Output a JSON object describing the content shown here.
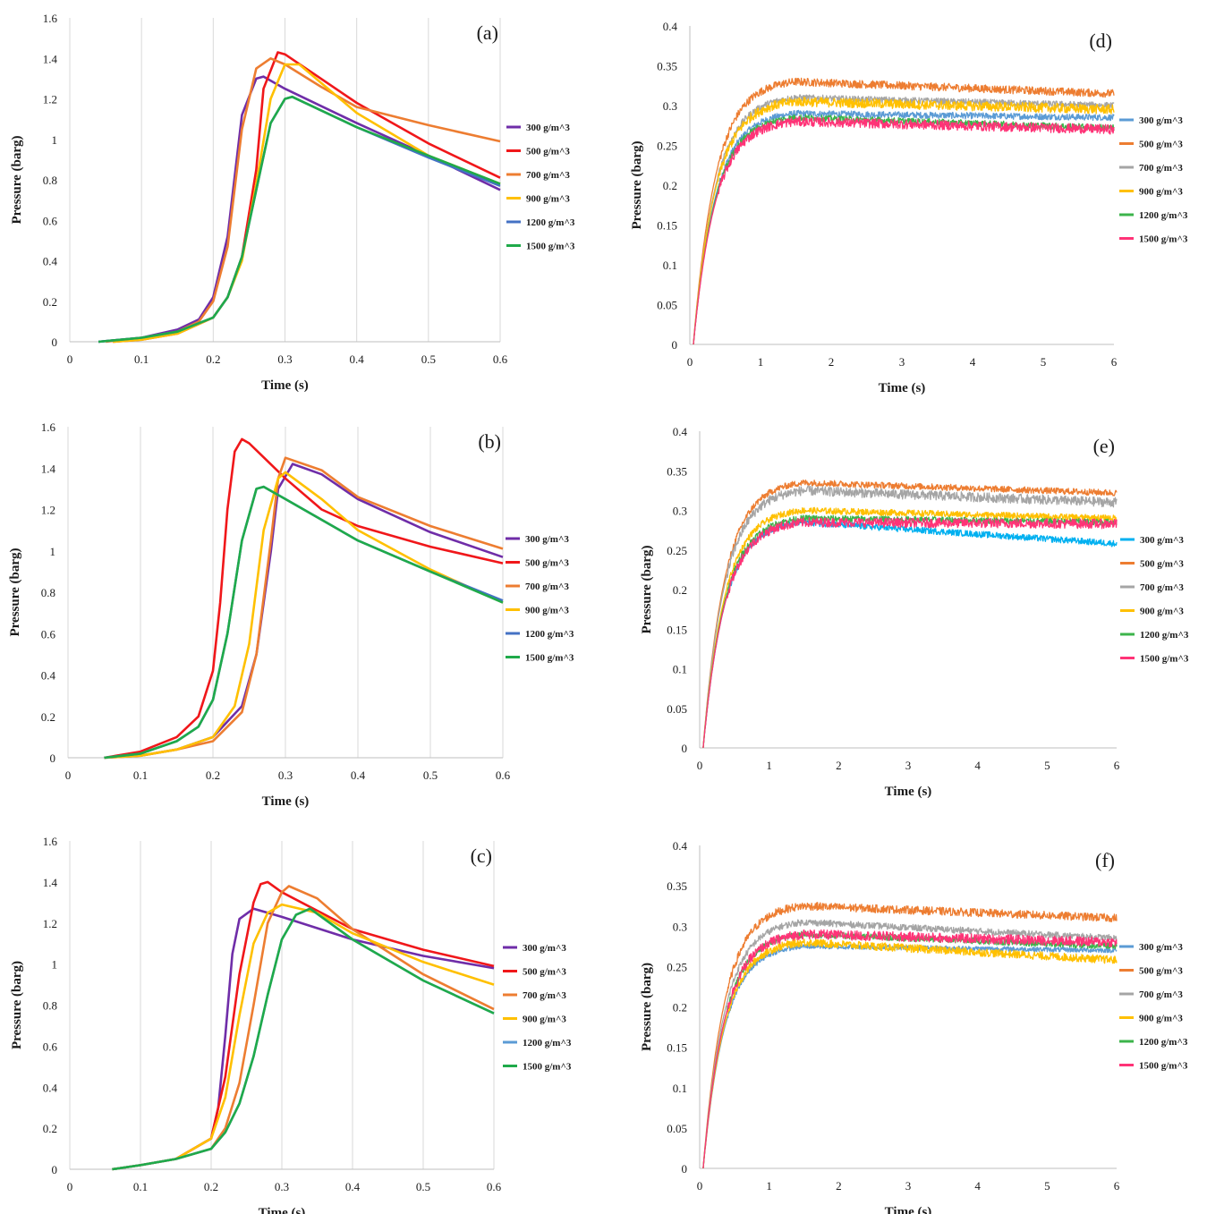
{
  "colors": {
    "300": "#6f2da8",
    "500": "#f0171a",
    "700": "#ed7d31",
    "900": "#ffc000",
    "1200": "#4472c4",
    "1500": "#1faa4a",
    "300_right": "#5b9bd5",
    "700_right": "#a5a5a5",
    "1200_right": "#3cb44b",
    "1500_right": "#ff3377",
    "300_e": "#00b0f0"
  },
  "chart_data": [
    {
      "id": "a",
      "type": "line",
      "label": "(a)",
      "xlabel": "Time (s)",
      "ylabel": "Pressure (barg)",
      "xlim": [
        0,
        0.6
      ],
      "ylim": [
        0,
        1.6
      ],
      "xticks": [
        "0",
        "0.1",
        "0.2",
        "0.3",
        "0.4",
        "0.5",
        "0.6"
      ],
      "yticks": [
        "0",
        "0.2",
        "0.4",
        "0.6",
        "0.8",
        "1",
        "1.2",
        "1.4",
        "1.6"
      ],
      "grid": true,
      "legend": "right",
      "series": [
        {
          "name": "300 g/m^3",
          "color": "#6f2da8",
          "x": [
            0.04,
            0.1,
            0.15,
            0.18,
            0.2,
            0.22,
            0.24,
            0.26,
            0.27,
            0.3,
            0.4,
            0.5,
            0.6
          ],
          "y": [
            0,
            0.02,
            0.06,
            0.11,
            0.22,
            0.52,
            1.12,
            1.3,
            1.31,
            1.25,
            1.08,
            0.92,
            0.75
          ]
        },
        {
          "name": "500 g/m^3",
          "color": "#f0171a",
          "x": [
            0.06,
            0.1,
            0.15,
            0.2,
            0.22,
            0.24,
            0.26,
            0.27,
            0.29,
            0.3,
            0.4,
            0.5,
            0.6
          ],
          "y": [
            0,
            0.01,
            0.04,
            0.12,
            0.22,
            0.42,
            0.85,
            1.25,
            1.43,
            1.42,
            1.18,
            0.98,
            0.81
          ]
        },
        {
          "name": "700 g/m^3",
          "color": "#ed7d31",
          "x": [
            0.05,
            0.1,
            0.15,
            0.18,
            0.2,
            0.22,
            0.24,
            0.26,
            0.28,
            0.3,
            0.35,
            0.4,
            0.5,
            0.6
          ],
          "y": [
            0,
            0.02,
            0.05,
            0.1,
            0.2,
            0.47,
            1.05,
            1.35,
            1.4,
            1.37,
            1.26,
            1.16,
            1.07,
            0.99
          ]
        },
        {
          "name": "900 g/m^3",
          "color": "#ffc000",
          "x": [
            0.06,
            0.1,
            0.15,
            0.2,
            0.22,
            0.24,
            0.26,
            0.28,
            0.3,
            0.32,
            0.4,
            0.5,
            0.6
          ],
          "y": [
            0,
            0.01,
            0.04,
            0.12,
            0.22,
            0.4,
            0.78,
            1.2,
            1.37,
            1.37,
            1.13,
            0.92,
            0.78
          ]
        },
        {
          "name": "1200 g/m^3",
          "color": "#4472c4",
          "x": [
            0.04,
            0.1,
            0.15,
            0.2,
            0.22,
            0.24,
            0.26,
            0.28,
            0.3,
            0.31,
            0.4,
            0.5,
            0.6
          ],
          "y": [
            0,
            0.02,
            0.05,
            0.12,
            0.22,
            0.42,
            0.75,
            1.08,
            1.2,
            1.21,
            1.06,
            0.91,
            0.77
          ]
        },
        {
          "name": "1500 g/m^3",
          "color": "#1faa4a",
          "x": [
            0.04,
            0.1,
            0.15,
            0.2,
            0.22,
            0.24,
            0.26,
            0.28,
            0.3,
            0.31,
            0.4,
            0.5,
            0.6
          ],
          "y": [
            0,
            0.02,
            0.05,
            0.12,
            0.22,
            0.42,
            0.75,
            1.08,
            1.2,
            1.21,
            1.06,
            0.92,
            0.78
          ]
        }
      ]
    },
    {
      "id": "b",
      "type": "line",
      "label": "(b)",
      "xlabel": "Time (s)",
      "ylabel": "Pressure (barg)",
      "xlim": [
        0,
        0.6
      ],
      "ylim": [
        0,
        1.6
      ],
      "xticks": [
        "0",
        "0.1",
        "0.2",
        "0.3",
        "0.4",
        "0.5",
        "0.6"
      ],
      "yticks": [
        "0",
        "0.2",
        "0.4",
        "0.6",
        "0.8",
        "1",
        "1.2",
        "1.4",
        "1.6"
      ],
      "grid": true,
      "legend": "right",
      "series": [
        {
          "name": "300 g/m^3",
          "color": "#6f2da8",
          "x": [
            0.05,
            0.1,
            0.15,
            0.2,
            0.24,
            0.26,
            0.28,
            0.29,
            0.31,
            0.35,
            0.4,
            0.5,
            0.6
          ],
          "y": [
            0,
            0.01,
            0.04,
            0.1,
            0.25,
            0.5,
            1.0,
            1.3,
            1.42,
            1.37,
            1.25,
            1.09,
            0.97
          ]
        },
        {
          "name": "500 g/m^3",
          "color": "#f0171a",
          "x": [
            0.05,
            0.1,
            0.15,
            0.18,
            0.2,
            0.21,
            0.22,
            0.23,
            0.24,
            0.25,
            0.3,
            0.35,
            0.4,
            0.5,
            0.6
          ],
          "y": [
            0,
            0.03,
            0.1,
            0.2,
            0.42,
            0.75,
            1.2,
            1.48,
            1.54,
            1.52,
            1.35,
            1.2,
            1.12,
            1.02,
            0.94
          ]
        },
        {
          "name": "700 g/m^3",
          "color": "#ed7d31",
          "x": [
            0.05,
            0.1,
            0.15,
            0.2,
            0.24,
            0.26,
            0.28,
            0.29,
            0.3,
            0.35,
            0.4,
            0.5,
            0.6
          ],
          "y": [
            0,
            0.01,
            0.04,
            0.08,
            0.22,
            0.5,
            1.05,
            1.35,
            1.45,
            1.39,
            1.26,
            1.12,
            1.01
          ]
        },
        {
          "name": "900 g/m^3",
          "color": "#ffc000",
          "x": [
            0.05,
            0.1,
            0.15,
            0.2,
            0.23,
            0.25,
            0.27,
            0.29,
            0.3,
            0.35,
            0.4,
            0.5,
            0.6
          ],
          "y": [
            0,
            0.01,
            0.04,
            0.1,
            0.25,
            0.55,
            1.1,
            1.35,
            1.38,
            1.25,
            1.1,
            0.91,
            0.75
          ]
        },
        {
          "name": "1200 g/m^3",
          "color": "#4472c4",
          "x": [
            0.05,
            0.1,
            0.15,
            0.18,
            0.2,
            0.22,
            0.24,
            0.26,
            0.27,
            0.3,
            0.4,
            0.5,
            0.6
          ],
          "y": [
            0,
            0.02,
            0.08,
            0.15,
            0.28,
            0.6,
            1.05,
            1.3,
            1.31,
            1.25,
            1.05,
            0.9,
            0.76
          ]
        },
        {
          "name": "1500 g/m^3",
          "color": "#1faa4a",
          "x": [
            0.05,
            0.1,
            0.15,
            0.18,
            0.2,
            0.22,
            0.24,
            0.26,
            0.27,
            0.3,
            0.4,
            0.5,
            0.6
          ],
          "y": [
            0,
            0.02,
            0.08,
            0.15,
            0.28,
            0.6,
            1.05,
            1.3,
            1.31,
            1.25,
            1.05,
            0.9,
            0.75
          ]
        }
      ]
    },
    {
      "id": "c",
      "type": "line",
      "label": "(c)",
      "xlabel": "Time (s)",
      "ylabel": "Pressure (barg)",
      "xlim": [
        0,
        0.6
      ],
      "ylim": [
        0,
        1.6
      ],
      "xticks": [
        "0",
        "0.1",
        "0.2",
        "0.3",
        "0.4",
        "0.5",
        "0.6"
      ],
      "yticks": [
        "0",
        "0.2",
        "0.4",
        "0.6",
        "0.8",
        "1",
        "1.2",
        "1.4",
        "1.6"
      ],
      "grid": true,
      "legend": "right",
      "series": [
        {
          "name": "300 g/m^3",
          "color": "#6f2da8",
          "x": [
            0.06,
            0.1,
            0.15,
            0.2,
            0.21,
            0.22,
            0.23,
            0.24,
            0.26,
            0.3,
            0.4,
            0.5,
            0.6
          ],
          "y": [
            0,
            0.02,
            0.05,
            0.15,
            0.3,
            0.65,
            1.05,
            1.22,
            1.27,
            1.23,
            1.12,
            1.04,
            0.98
          ]
        },
        {
          "name": "500 g/m^3",
          "color": "#f0171a",
          "x": [
            0.06,
            0.1,
            0.15,
            0.2,
            0.22,
            0.24,
            0.26,
            0.27,
            0.28,
            0.3,
            0.4,
            0.5,
            0.6
          ],
          "y": [
            0,
            0.02,
            0.05,
            0.15,
            0.45,
            0.95,
            1.3,
            1.39,
            1.4,
            1.35,
            1.17,
            1.07,
            0.99
          ]
        },
        {
          "name": "700 g/m^3",
          "color": "#ed7d31",
          "x": [
            0.06,
            0.1,
            0.15,
            0.2,
            0.22,
            0.24,
            0.26,
            0.28,
            0.3,
            0.31,
            0.35,
            0.4,
            0.5,
            0.6
          ],
          "y": [
            0,
            0.02,
            0.05,
            0.1,
            0.2,
            0.42,
            0.8,
            1.2,
            1.35,
            1.38,
            1.32,
            1.17,
            0.95,
            0.78
          ]
        },
        {
          "name": "900 g/m^3",
          "color": "#ffc000",
          "x": [
            0.06,
            0.1,
            0.15,
            0.2,
            0.22,
            0.24,
            0.26,
            0.28,
            0.3,
            0.35,
            0.4,
            0.5,
            0.6
          ],
          "y": [
            0,
            0.02,
            0.05,
            0.15,
            0.35,
            0.75,
            1.1,
            1.25,
            1.29,
            1.25,
            1.15,
            1.01,
            0.9
          ]
        },
        {
          "name": "1200 g/m^3",
          "color": "#5b9bd5",
          "x": [
            0.06,
            0.1,
            0.15,
            0.2,
            0.22,
            0.24,
            0.26,
            0.28,
            0.3,
            0.32,
            0.34,
            0.4,
            0.5,
            0.6
          ],
          "y": [
            0,
            0.02,
            0.05,
            0.1,
            0.18,
            0.32,
            0.55,
            0.85,
            1.12,
            1.24,
            1.27,
            1.12,
            0.92,
            0.76
          ]
        },
        {
          "name": "1500 g/m^3",
          "color": "#1faa4a",
          "x": [
            0.06,
            0.1,
            0.15,
            0.2,
            0.22,
            0.24,
            0.26,
            0.28,
            0.3,
            0.32,
            0.34,
            0.4,
            0.5,
            0.6
          ],
          "y": [
            0,
            0.02,
            0.05,
            0.1,
            0.18,
            0.32,
            0.55,
            0.85,
            1.12,
            1.24,
            1.27,
            1.12,
            0.92,
            0.76
          ]
        }
      ]
    },
    {
      "id": "d",
      "type": "line",
      "label": "(d)",
      "xlabel": "Time (s)",
      "ylabel": "Pressure (barg)",
      "xlim": [
        0,
        6
      ],
      "ylim": [
        0,
        0.4
      ],
      "xticks": [
        "0",
        "1",
        "2",
        "3",
        "4",
        "5",
        "6"
      ],
      "yticks": [
        "0",
        "0.05",
        "0.1",
        "0.15",
        "0.2",
        "0.25",
        "0.3",
        "0.35",
        "0.4"
      ],
      "grid": false,
      "legend": "right",
      "series": [
        {
          "name": "300 g/m^3",
          "color": "#5b9bd5",
          "plateau": 0.29,
          "end": 0.285,
          "noise": 0.008
        },
        {
          "name": "500 g/m^3",
          "color": "#ed7d31",
          "plateau": 0.33,
          "end": 0.315,
          "noise": 0.01
        },
        {
          "name": "700 g/m^3",
          "color": "#a5a5a5",
          "plateau": 0.31,
          "end": 0.3,
          "noise": 0.008
        },
        {
          "name": "900 g/m^3",
          "color": "#ffc000",
          "plateau": 0.305,
          "end": 0.295,
          "noise": 0.012
        },
        {
          "name": "1200 g/m^3",
          "color": "#3cb44b",
          "plateau": 0.285,
          "end": 0.272,
          "noise": 0.008
        },
        {
          "name": "1500 g/m^3",
          "color": "#ff3377",
          "plateau": 0.28,
          "end": 0.27,
          "noise": 0.012
        }
      ]
    },
    {
      "id": "e",
      "type": "line",
      "label": "(e)",
      "xlabel": "Time (s)",
      "ylabel": "Pressure (barg)",
      "xlim": [
        0,
        6
      ],
      "ylim": [
        0,
        0.4
      ],
      "xticks": [
        "0",
        "1",
        "2",
        "3",
        "4",
        "5",
        "6"
      ],
      "yticks": [
        "0",
        "0.05",
        "0.1",
        "0.15",
        "0.2",
        "0.25",
        "0.3",
        "0.35",
        "0.4"
      ],
      "grid": false,
      "legend": "right",
      "series": [
        {
          "name": "300 g/m^3",
          "color": "#00b0f0",
          "plateau": 0.285,
          "end": 0.258,
          "noise": 0.008
        },
        {
          "name": "500 g/m^3",
          "color": "#ed7d31",
          "plateau": 0.335,
          "end": 0.322,
          "noise": 0.008
        },
        {
          "name": "700 g/m^3",
          "color": "#a5a5a5",
          "plateau": 0.325,
          "end": 0.31,
          "noise": 0.012
        },
        {
          "name": "900 g/m^3",
          "color": "#ffc000",
          "plateau": 0.3,
          "end": 0.29,
          "noise": 0.008
        },
        {
          "name": "1200 g/m^3",
          "color": "#3cb44b",
          "plateau": 0.29,
          "end": 0.285,
          "noise": 0.008
        },
        {
          "name": "1500 g/m^3",
          "color": "#ff3377",
          "plateau": 0.285,
          "end": 0.283,
          "noise": 0.012
        }
      ]
    },
    {
      "id": "f",
      "type": "line",
      "label": "(f)",
      "xlabel": "Time (s)",
      "ylabel": "Pressure (barg)",
      "xlim": [
        0,
        6
      ],
      "ylim": [
        0,
        0.4
      ],
      "xticks": [
        "0",
        "1",
        "2",
        "3",
        "4",
        "5",
        "6"
      ],
      "yticks": [
        "0",
        "0.05",
        "0.1",
        "0.15",
        "0.2",
        "0.25",
        "0.3",
        "0.35",
        "0.4"
      ],
      "grid": false,
      "legend": "right",
      "series": [
        {
          "name": "300 g/m^3",
          "color": "#5b9bd5",
          "plateau": 0.275,
          "end": 0.27,
          "noise": 0.006
        },
        {
          "name": "500 g/m^3",
          "color": "#ed7d31",
          "plateau": 0.325,
          "end": 0.31,
          "noise": 0.01
        },
        {
          "name": "700 g/m^3",
          "color": "#a5a5a5",
          "plateau": 0.305,
          "end": 0.285,
          "noise": 0.008
        },
        {
          "name": "900 g/m^3",
          "color": "#ffc000",
          "plateau": 0.28,
          "end": 0.258,
          "noise": 0.01
        },
        {
          "name": "1200 g/m^3",
          "color": "#3cb44b",
          "plateau": 0.29,
          "end": 0.275,
          "noise": 0.008
        },
        {
          "name": "1500 g/m^3",
          "color": "#ff3377",
          "plateau": 0.29,
          "end": 0.28,
          "noise": 0.012
        }
      ]
    }
  ]
}
